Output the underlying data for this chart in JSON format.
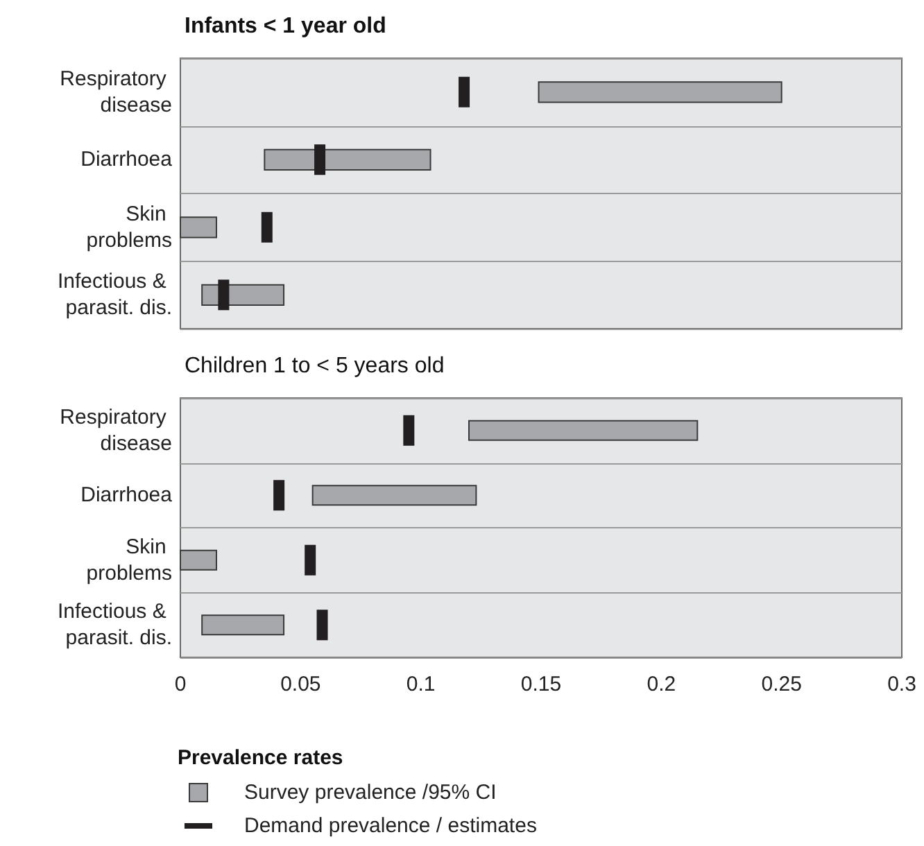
{
  "chart_data": [
    {
      "type": "bar",
      "title": "Infants < 1 year old",
      "orientation": "horizontal",
      "categories": [
        "Respiratory disease",
        "Diarrhoea",
        "Skin problems",
        "Infectious & parasit. dis."
      ],
      "xlim": [
        0,
        0.3
      ],
      "xticks": [
        0,
        0.05,
        0.1,
        0.15,
        0.2,
        0.25,
        0.3
      ],
      "tick_labels": "y",
      "grid": "y",
      "legend": false,
      "series": [
        {
          "color": "#a7a8ab",
          "base": [
            0.149,
            0.035,
            0,
            0.009
          ],
          "values": [
            0.101,
            0.069,
            0.015,
            0.034
          ]
        },
        {
          "type": "scatter",
          "color": "#231f20",
          "x": [
            "Respiratory disease",
            "Diarrhoea",
            "Skin problems",
            "Infectious & parasit. dis."
          ],
          "values": [
            0.118,
            0.058,
            0.036,
            0.018
          ]
        }
      ]
    },
    {
      "type": "bar",
      "title": "Children 1 to < 5 years old",
      "orientation": "horizontal",
      "categories": [
        "Respiratory disease",
        "Diarrhoea",
        "Skin problems",
        "Infectious & parasit. dis."
      ],
      "xlim": [
        0,
        0.3
      ],
      "xticks": [
        0,
        0.05,
        0.1,
        0.15,
        0.2,
        0.25,
        0.3
      ],
      "grid": "y",
      "legend": "bottom",
      "legend_title": "Prevalence rates",
      "series": [
        {
          "name": "Survey prevalence /95% CI",
          "color": "#a7a8ab",
          "base": [
            0.12,
            0.055,
            0,
            0.009
          ],
          "values": [
            0.095,
            0.068,
            0.015,
            0.034
          ]
        },
        {
          "name": "Demand prevalence / estimates",
          "type": "scatter",
          "color": "#231f20",
          "x": [
            "Respiratory disease",
            "Diarrhoea",
            "Skin problems",
            "Infectious & parasit. dis."
          ],
          "values": [
            0.095,
            0.041,
            0.054,
            0.059
          ]
        }
      ]
    }
  ]
}
